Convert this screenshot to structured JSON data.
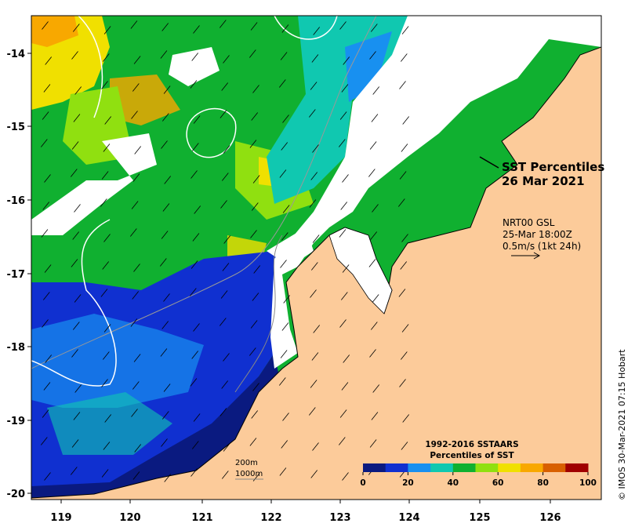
{
  "map": {
    "title_line1": "SST Percentiles",
    "title_line2": "26 Mar 2021",
    "current_info": {
      "line1": "NRT00 GSL",
      "line2": "25-Mar 18:00Z",
      "line3": "0.5m/s (1kt 24h)"
    },
    "depth_contours": {
      "line1": "200m",
      "line2": "1000m"
    },
    "credit": "© IMOS 30-Mar-2021 07:15 Hobart",
    "x_axis_ticks": [
      "119",
      "120",
      "121",
      "122",
      "123",
      "124",
      "125",
      "126"
    ],
    "y_axis_ticks": [
      "-14",
      "-15",
      "-16",
      "-17",
      "-18",
      "-19",
      "-20"
    ],
    "colorbar": {
      "title_line1": "1992-2016 SSTAARS",
      "title_line2": "Percentiles of SST",
      "tick_labels": [
        "0",
        "20",
        "40",
        "60",
        "80",
        "100"
      ],
      "colors": [
        "#0a1a80",
        "#1030d0",
        "#1890f0",
        "#10c8b0",
        "#10b030",
        "#90e010",
        "#f0e000",
        "#f8a800",
        "#d86000",
        "#a00000"
      ]
    },
    "colors": {
      "land": "#fccb9a",
      "no_data": "#ffffff"
    }
  }
}
